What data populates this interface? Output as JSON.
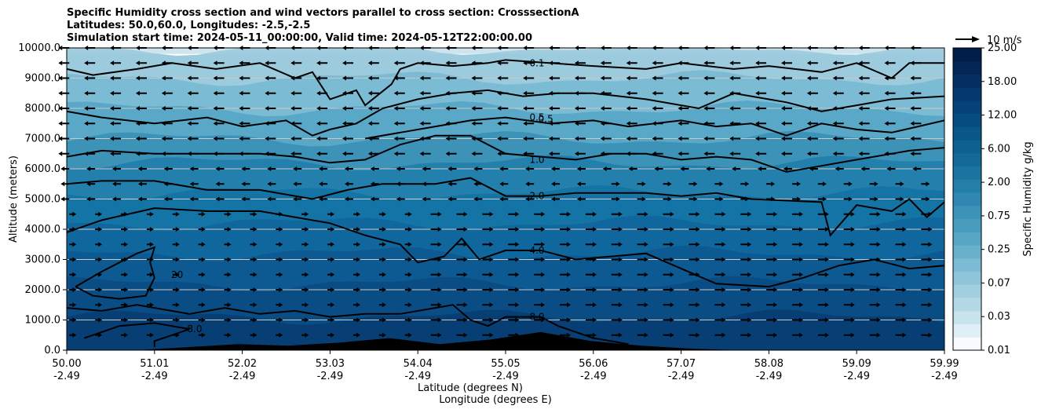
{
  "chart_data": {
    "type": "contour",
    "title_lines": [
      "Specific Humidity cross section and wind vectors parallel to cross section: CrosssectionA",
      "Latitudes: 50.0,60.0, Longitudes: -2.5,-2.5",
      "Simulation start time: 2024-05-11_00:00:00, Valid time: 2024-05-12T22:00:00.00"
    ],
    "ylabel": "Altitude (meters)",
    "xlabel_1": "Latitude (degrees N)",
    "xlabel_2": "Longitude (degrees E)",
    "ylim": [
      0,
      10000
    ],
    "y_ticks": [
      "0.0",
      "1000.0",
      "2000.0",
      "3000.0",
      "4000.0",
      "5000.0",
      "6000.0",
      "7000.0",
      "8000.0",
      "9000.0",
      "10000.0"
    ],
    "x_ticks": [
      {
        "lat": "50.00",
        "lon": "-2.49"
      },
      {
        "lat": "51.01",
        "lon": "-2.49"
      },
      {
        "lat": "52.02",
        "lon": "-2.49"
      },
      {
        "lat": "53.03",
        "lon": "-2.49"
      },
      {
        "lat": "54.04",
        "lon": "-2.49"
      },
      {
        "lat": "55.05",
        "lon": "-2.49"
      },
      {
        "lat": "56.06",
        "lon": "-2.49"
      },
      {
        "lat": "57.07",
        "lon": "-2.49"
      },
      {
        "lat": "58.08",
        "lon": "-2.49"
      },
      {
        "lat": "59.09",
        "lon": "-2.49"
      },
      {
        "lat": "59.99",
        "lon": "-2.49"
      }
    ],
    "colorbar": {
      "label": "Specific Humidity g/kg",
      "levels": [
        0.01,
        0.02,
        0.03,
        0.05,
        0.07,
        0.1,
        0.15,
        0.25,
        0.35,
        0.5,
        0.75,
        1.0,
        1.5,
        2.0,
        3.0,
        4.0,
        6.0,
        8.0,
        10.0,
        12.0,
        15.0,
        18.0,
        20.0,
        25.0
      ],
      "tick_labels": [
        "0.01",
        "0.03",
        "0.07",
        "0.25",
        "0.75",
        "2.00",
        "6.00",
        "12.00",
        "18.00",
        "25.00"
      ],
      "colors": [
        "#f7fbfd",
        "#e0eff5",
        "#c8e3ec",
        "#b4d9e6",
        "#a2cfe0",
        "#8fc5da",
        "#7cbbd4",
        "#69b0cd",
        "#58a6c6",
        "#4a9cbf",
        "#3d92b8",
        "#3088b0",
        "#237ea8",
        "#1b74a0",
        "#136a98",
        "#0e6090",
        "#0a5688",
        "#074c80",
        "#054278",
        "#04386e",
        "#032f63",
        "#032657",
        "#031d4b"
      ]
    },
    "contours": [
      {
        "label": "0.1",
        "label_x_frac": 0.5,
        "label_y": 9500,
        "points": [
          [
            0,
            9300
          ],
          [
            0.03,
            9100
          ],
          [
            0.08,
            9300
          ],
          [
            0.12,
            9500
          ],
          [
            0.17,
            9300
          ],
          [
            0.22,
            9500
          ],
          [
            0.26,
            9000
          ],
          [
            0.28,
            9200
          ],
          [
            0.3,
            8300
          ],
          [
            0.33,
            8600
          ],
          [
            0.34,
            8100
          ],
          [
            0.37,
            8800
          ],
          [
            0.38,
            9300
          ],
          [
            0.4,
            9500
          ],
          [
            0.44,
            9400
          ],
          [
            0.48,
            9500
          ],
          [
            0.5,
            9600
          ],
          [
            0.55,
            9500
          ],
          [
            0.6,
            9400
          ],
          [
            0.66,
            9300
          ],
          [
            0.7,
            9500
          ],
          [
            0.76,
            9300
          ],
          [
            0.8,
            9400
          ],
          [
            0.86,
            9200
          ],
          [
            0.9,
            9500
          ],
          [
            0.94,
            9000
          ],
          [
            0.96,
            9500
          ],
          [
            1.0,
            9500
          ]
        ]
      },
      {
        "label": "0.5",
        "label_x_frac": 0.5,
        "label_y": 7700,
        "points": [
          [
            0,
            7900
          ],
          [
            0.04,
            7700
          ],
          [
            0.1,
            7500
          ],
          [
            0.16,
            7700
          ],
          [
            0.2,
            7400
          ],
          [
            0.25,
            7600
          ],
          [
            0.28,
            7100
          ],
          [
            0.3,
            7300
          ],
          [
            0.33,
            7500
          ],
          [
            0.36,
            8000
          ],
          [
            0.4,
            8300
          ],
          [
            0.44,
            8500
          ],
          [
            0.48,
            8600
          ],
          [
            0.52,
            8400
          ],
          [
            0.56,
            8500
          ],
          [
            0.6,
            8500
          ],
          [
            0.66,
            8300
          ],
          [
            0.72,
            8000
          ],
          [
            0.76,
            8500
          ],
          [
            0.82,
            8200
          ],
          [
            0.86,
            7900
          ],
          [
            0.9,
            8100
          ],
          [
            0.94,
            8300
          ],
          [
            1.0,
            8400
          ]
        ]
      },
      {
        "label": "0.5",
        "label_x_frac": 0.51,
        "label_y": 7650,
        "points": [
          [
            0.34,
            7000
          ],
          [
            0.38,
            7200
          ],
          [
            0.42,
            7400
          ],
          [
            0.46,
            7600
          ],
          [
            0.5,
            7700
          ],
          [
            0.55,
            7500
          ],
          [
            0.6,
            7600
          ],
          [
            0.64,
            7400
          ],
          [
            0.7,
            7600
          ],
          [
            0.74,
            7400
          ],
          [
            0.78,
            7500
          ],
          [
            0.82,
            7100
          ],
          [
            0.86,
            7500
          ],
          [
            0.9,
            7300
          ],
          [
            0.94,
            7200
          ],
          [
            0.97,
            7400
          ],
          [
            1.0,
            7600
          ]
        ]
      },
      {
        "label": "1.0",
        "label_x_frac": 0.5,
        "label_y": 6300,
        "points": [
          [
            0,
            6400
          ],
          [
            0.04,
            6600
          ],
          [
            0.1,
            6500
          ],
          [
            0.16,
            6500
          ],
          [
            0.22,
            6500
          ],
          [
            0.26,
            6400
          ],
          [
            0.3,
            6200
          ],
          [
            0.34,
            6300
          ],
          [
            0.38,
            6800
          ],
          [
            0.42,
            7100
          ],
          [
            0.46,
            7100
          ],
          [
            0.5,
            6500
          ],
          [
            0.54,
            6400
          ],
          [
            0.58,
            6300
          ],
          [
            0.62,
            6500
          ],
          [
            0.66,
            6500
          ],
          [
            0.7,
            6300
          ],
          [
            0.74,
            6400
          ],
          [
            0.78,
            6300
          ],
          [
            0.82,
            5900
          ],
          [
            0.86,
            6100
          ],
          [
            0.9,
            6300
          ],
          [
            0.96,
            6600
          ],
          [
            1.0,
            6700
          ]
        ]
      },
      {
        "label": "2.0",
        "label_x_frac": 0.5,
        "label_y": 5100,
        "points": [
          [
            0,
            5500
          ],
          [
            0.04,
            5600
          ],
          [
            0.1,
            5600
          ],
          [
            0.16,
            5300
          ],
          [
            0.22,
            5300
          ],
          [
            0.28,
            5000
          ],
          [
            0.32,
            5300
          ],
          [
            0.36,
            5500
          ],
          [
            0.42,
            5500
          ],
          [
            0.46,
            5700
          ],
          [
            0.5,
            5100
          ],
          [
            0.54,
            5100
          ],
          [
            0.58,
            5200
          ],
          [
            0.62,
            5200
          ],
          [
            0.66,
            5200
          ],
          [
            0.7,
            5100
          ],
          [
            0.74,
            5200
          ],
          [
            0.78,
            5000
          ],
          [
            0.86,
            4900
          ],
          [
            0.87,
            3800
          ],
          [
            0.9,
            4800
          ],
          [
            0.94,
            4600
          ],
          [
            0.96,
            5000
          ],
          [
            0.98,
            4400
          ],
          [
            1.0,
            4900
          ]
        ]
      },
      {
        "label": "4.0",
        "label_x_frac": 0.5,
        "label_y": 3300,
        "points": [
          [
            0,
            3900
          ],
          [
            0.04,
            4300
          ],
          [
            0.1,
            4700
          ],
          [
            0.16,
            4600
          ],
          [
            0.22,
            4600
          ],
          [
            0.26,
            4400
          ],
          [
            0.3,
            4200
          ],
          [
            0.34,
            3800
          ],
          [
            0.38,
            3500
          ],
          [
            0.4,
            2900
          ],
          [
            0.43,
            3100
          ],
          [
            0.45,
            3700
          ],
          [
            0.47,
            3000
          ],
          [
            0.5,
            3300
          ],
          [
            0.54,
            3300
          ],
          [
            0.58,
            3000
          ],
          [
            0.62,
            3100
          ],
          [
            0.66,
            3200
          ],
          [
            0.7,
            2700
          ],
          [
            0.74,
            2200
          ],
          [
            0.8,
            2100
          ],
          [
            0.84,
            2400
          ],
          [
            0.88,
            2800
          ],
          [
            0.92,
            3000
          ],
          [
            0.96,
            2700
          ],
          [
            1.0,
            2800
          ]
        ]
      },
      {
        "label": "20",
        "label_x_frac": 0.09,
        "label_y": 2500,
        "points": [
          [
            0.01,
            2100
          ],
          [
            0.04,
            2600
          ],
          [
            0.08,
            3200
          ],
          [
            0.1,
            3400
          ],
          [
            0.095,
            2900
          ],
          [
            0.1,
            2400
          ],
          [
            0.09,
            1800
          ],
          [
            0.06,
            1700
          ],
          [
            0.03,
            1800
          ],
          [
            0.01,
            2100
          ]
        ]
      },
      {
        "label": "8.0",
        "label_x_frac": 0.5,
        "label_y": 1100,
        "points": [
          [
            0,
            1400
          ],
          [
            0.04,
            1300
          ],
          [
            0.08,
            1500
          ],
          [
            0.14,
            1200
          ],
          [
            0.18,
            1400
          ],
          [
            0.22,
            1200
          ],
          [
            0.26,
            1300
          ],
          [
            0.3,
            1100
          ],
          [
            0.34,
            1200
          ],
          [
            0.38,
            1200
          ],
          [
            0.42,
            1400
          ],
          [
            0.44,
            1500
          ],
          [
            0.46,
            1000
          ],
          [
            0.48,
            800
          ],
          [
            0.5,
            1100
          ],
          [
            0.54,
            1100
          ],
          [
            0.56,
            800
          ],
          [
            0.58,
            600
          ],
          [
            0.6,
            400
          ],
          [
            0.62,
            300
          ],
          [
            0.64,
            200
          ]
        ]
      },
      {
        "label": "8.0",
        "label_x_frac": 0.11,
        "label_y": 700,
        "points": [
          [
            0.02,
            400
          ],
          [
            0.06,
            800
          ],
          [
            0.1,
            900
          ],
          [
            0.14,
            700
          ],
          [
            0.12,
            500
          ],
          [
            0.1,
            300
          ],
          [
            0.1,
            100
          ]
        ]
      }
    ],
    "vector_key_label": "10 m/s",
    "terrain_peak_altitudes": [
      0,
      100,
      200,
      150,
      250,
      400,
      200,
      350,
      600,
      300,
      150,
      50,
      0
    ]
  }
}
